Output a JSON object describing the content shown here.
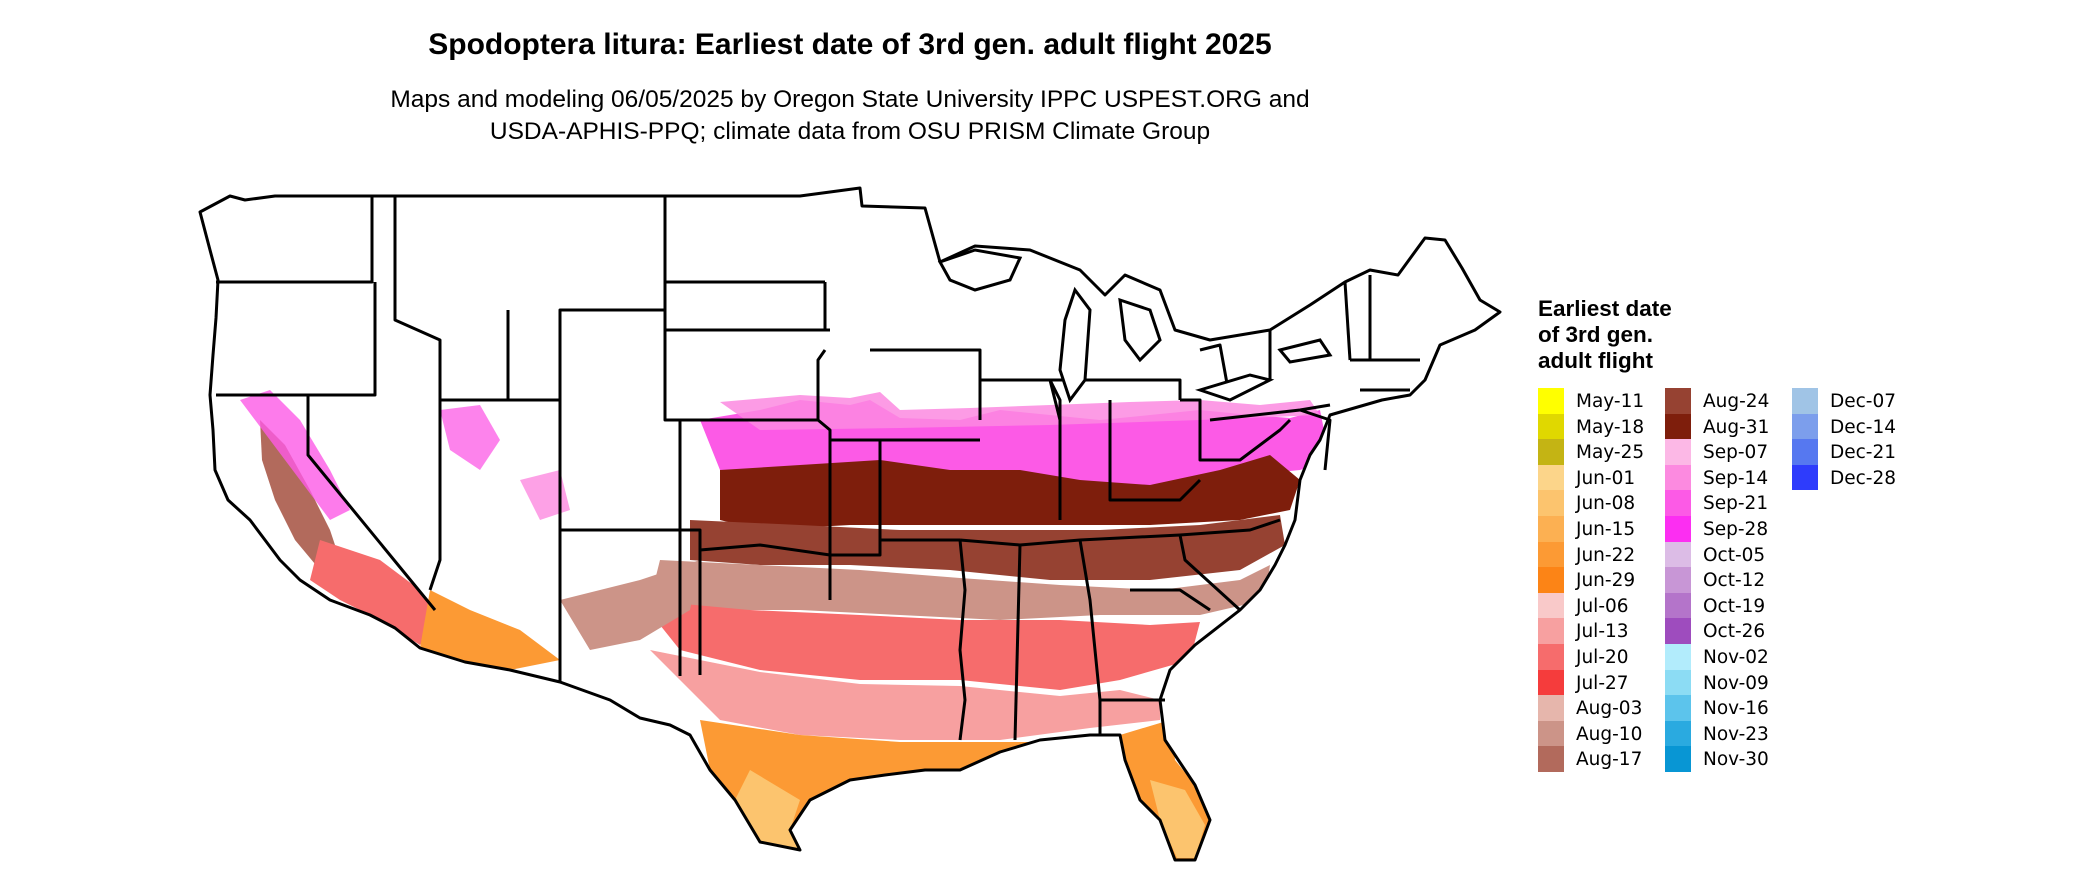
{
  "title": "Spodoptera litura: Earliest date of 3rd gen. adult flight 2025",
  "subtitle_line1": "Maps and modeling 06/05/2025 by Oregon State University IPPC USPEST.ORG and",
  "subtitle_line2": "USDA-APHIS-PPQ; climate data from OSU PRISM Climate Group",
  "legend": {
    "title_line1": "Earliest date",
    "title_line2": "of 3rd gen.",
    "title_line3": "adult flight",
    "columns": [
      [
        {
          "label": "May-11",
          "color": "#ffff00"
        },
        {
          "label": "May-18",
          "color": "#e0d800"
        },
        {
          "label": "May-25",
          "color": "#c4b414"
        },
        {
          "label": "Jun-01",
          "color": "#fcd58a"
        },
        {
          "label": "Jun-08",
          "color": "#fcc46e"
        },
        {
          "label": "Jun-15",
          "color": "#fcb052"
        },
        {
          "label": "Jun-22",
          "color": "#fc9a34"
        },
        {
          "label": "Jun-29",
          "color": "#fc8416"
        },
        {
          "label": "Jul-06",
          "color": "#f9c9c9"
        },
        {
          "label": "Jul-13",
          "color": "#f7a0a0"
        },
        {
          "label": "Jul-20",
          "color": "#f66c6c"
        },
        {
          "label": "Jul-27",
          "color": "#f53c3c"
        },
        {
          "label": "Aug-03",
          "color": "#e6b6ac"
        },
        {
          "label": "Aug-10",
          "color": "#cc9488"
        },
        {
          "label": "Aug-17",
          "color": "#b26a5c"
        }
      ],
      [
        {
          "label": "Aug-24",
          "color": "#964232"
        },
        {
          "label": "Aug-31",
          "color": "#7e1e0c"
        },
        {
          "label": "Sep-07",
          "color": "#fcb8e6"
        },
        {
          "label": "Sep-14",
          "color": "#fc8ae0"
        },
        {
          "label": "Sep-21",
          "color": "#fc5ae6"
        },
        {
          "label": "Sep-28",
          "color": "#fc2ef2"
        },
        {
          "label": "Oct-05",
          "color": "#dcbce6"
        },
        {
          "label": "Oct-12",
          "color": "#c896d6"
        },
        {
          "label": "Oct-19",
          "color": "#b474ca"
        },
        {
          "label": "Oct-26",
          "color": "#9e4cbe"
        },
        {
          "label": "Nov-02",
          "color": "#b2ecfc"
        },
        {
          "label": "Nov-09",
          "color": "#8cdcf4"
        },
        {
          "label": "Nov-16",
          "color": "#5cc4ec"
        },
        {
          "label": "Nov-23",
          "color": "#2aaae0"
        },
        {
          "label": "Nov-30",
          "color": "#0896d4"
        }
      ],
      [
        {
          "label": "Dec-07",
          "color": "#a0c4e6"
        },
        {
          "label": "Dec-14",
          "color": "#7c9eec"
        },
        {
          "label": "Dec-21",
          "color": "#5678f0"
        },
        {
          "label": "Dec-28",
          "color": "#2e3cfc"
        }
      ]
    ]
  }
}
